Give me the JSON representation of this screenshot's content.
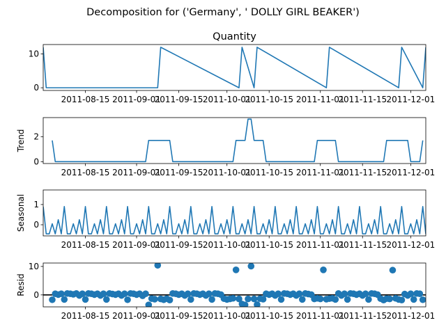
{
  "chart_data": {
    "type": "line",
    "suptitle": "Decomposition for ('Germany', ' DOLLY GIRL BEAKER')",
    "x_range": [
      "2011-08-01",
      "2011-12-06"
    ],
    "x_ticks": [
      "2011-08-15",
      "2011-09-01",
      "2011-09-15",
      "2011-10-01",
      "2011-10-15",
      "2011-11-01",
      "2011-11-15",
      "2011-12-01"
    ],
    "colors": {
      "line": "#1f77b4",
      "points": "#1f77b4",
      "zero_line": "#000000"
    },
    "panels": [
      {
        "key": "observed",
        "title": "Quantity",
        "ylabel": "",
        "style": "line",
        "ylim": [
          -0.8,
          12.8
        ],
        "yticks": [
          0,
          10
        ],
        "series": {
          "x": [
            "2011-08-01",
            "2011-08-02",
            "2011-09-08",
            "2011-09-09",
            "2011-10-05",
            "2011-10-06",
            "2011-10-10",
            "2011-10-11",
            "2011-11-03",
            "2011-11-04",
            "2011-11-27",
            "2011-11-28",
            "2011-12-05",
            "2011-12-06"
          ],
          "y": [
            12,
            0,
            0,
            12,
            0,
            12,
            0,
            12,
            0,
            12,
            0,
            12,
            0,
            12
          ]
        }
      },
      {
        "key": "trend",
        "title": "",
        "ylabel": "Trend",
        "style": "line",
        "ylim": [
          -0.15,
          3.55
        ],
        "yticks": [
          0,
          2
        ],
        "series": {
          "x": [
            "2011-08-04",
            "2011-08-05",
            "2011-09-04",
            "2011-09-05",
            "2011-09-12",
            "2011-09-13",
            "2011-10-03",
            "2011-10-04",
            "2011-10-07",
            "2011-10-08",
            "2011-10-09",
            "2011-10-10",
            "2011-10-13",
            "2011-10-14",
            "2011-10-30",
            "2011-10-31",
            "2011-11-06",
            "2011-11-07",
            "2011-11-22",
            "2011-11-23",
            "2011-11-30",
            "2011-12-01",
            "2011-12-04",
            "2011-12-05"
          ],
          "y": [
            1.71,
            0,
            0,
            1.71,
            1.71,
            0,
            0,
            1.71,
            1.71,
            3.43,
            3.43,
            1.71,
            1.71,
            0,
            0,
            1.71,
            1.71,
            0,
            0,
            1.71,
            1.71,
            0,
            0,
            1.71
          ]
        }
      },
      {
        "key": "seasonal",
        "title": "",
        "ylabel": "Seasonal",
        "style": "line",
        "ylim": [
          -0.55,
          1.72
        ],
        "yticks": [
          0,
          1
        ],
        "period_days": 7,
        "start": "2011-08-01",
        "pattern": [
          0.9,
          -0.45,
          -0.45,
          0.05,
          -0.45,
          0.25,
          -0.45
        ]
      },
      {
        "key": "resid",
        "title": "",
        "ylabel": "Resid",
        "style": "scatter",
        "ylim": [
          -4.2,
          11.2
        ],
        "yticks": [
          0,
          10
        ],
        "baseline": 0,
        "series": {
          "x": [
            "2011-08-04",
            "2011-08-05",
            "2011-08-06",
            "2011-08-07",
            "2011-08-08",
            "2011-08-09",
            "2011-08-10",
            "2011-08-11",
            "2011-08-12",
            "2011-08-13",
            "2011-08-14",
            "2011-08-15",
            "2011-08-16",
            "2011-08-17",
            "2011-08-18",
            "2011-08-19",
            "2011-08-20",
            "2011-08-21",
            "2011-08-22",
            "2011-08-23",
            "2011-08-24",
            "2011-08-25",
            "2011-08-26",
            "2011-08-27",
            "2011-08-28",
            "2011-08-29",
            "2011-08-30",
            "2011-08-31",
            "2011-09-01",
            "2011-09-02",
            "2011-09-03",
            "2011-09-04",
            "2011-09-05",
            "2011-09-06",
            "2011-09-07",
            "2011-09-08",
            "2011-09-09",
            "2011-09-10",
            "2011-09-11",
            "2011-09-12",
            "2011-09-13",
            "2011-09-14",
            "2011-09-15",
            "2011-09-16",
            "2011-09-17",
            "2011-09-18",
            "2011-09-19",
            "2011-09-20",
            "2011-09-21",
            "2011-09-22",
            "2011-09-23",
            "2011-09-24",
            "2011-09-25",
            "2011-09-26",
            "2011-09-27",
            "2011-09-28",
            "2011-09-29",
            "2011-09-30",
            "2011-10-01",
            "2011-10-02",
            "2011-10-03",
            "2011-10-04",
            "2011-10-05",
            "2011-10-06",
            "2011-10-07",
            "2011-10-08",
            "2011-10-09",
            "2011-10-10",
            "2011-10-11",
            "2011-10-12",
            "2011-10-13",
            "2011-10-14",
            "2011-10-15",
            "2011-10-16",
            "2011-10-17",
            "2011-10-18",
            "2011-10-19",
            "2011-10-20",
            "2011-10-21",
            "2011-10-22",
            "2011-10-23",
            "2011-10-24",
            "2011-10-25",
            "2011-10-26",
            "2011-10-27",
            "2011-10-28",
            "2011-10-29",
            "2011-10-30",
            "2011-10-31",
            "2011-11-01",
            "2011-11-02",
            "2011-11-03",
            "2011-11-04",
            "2011-11-05",
            "2011-11-06",
            "2011-11-07",
            "2011-11-08",
            "2011-11-09",
            "2011-11-10",
            "2011-11-11",
            "2011-11-12",
            "2011-11-13",
            "2011-11-14",
            "2011-11-15",
            "2011-11-16",
            "2011-11-17",
            "2011-11-18",
            "2011-11-19",
            "2011-11-20",
            "2011-11-21",
            "2011-11-22",
            "2011-11-23",
            "2011-11-24",
            "2011-11-25",
            "2011-11-26",
            "2011-11-27",
            "2011-11-28",
            "2011-11-29",
            "2011-11-30",
            "2011-12-01",
            "2011-12-02",
            "2011-12-03",
            "2011-12-04",
            "2011-12-05"
          ],
          "y": [
            -1.7,
            0.4,
            0.1,
            0.4,
            -1.6,
            0.5,
            0.4,
            0.2,
            0.5,
            -0.2,
            0.4,
            -1.6,
            0.5,
            0.4,
            0.1,
            0.4,
            -0.2,
            0.4,
            -1.6,
            0.5,
            0.3,
            0.1,
            0.4,
            -0.2,
            0.4,
            -1.7,
            0.5,
            0.4,
            0.1,
            0.4,
            -0.3,
            0.4,
            -3.5,
            -1.3,
            -1.5,
            10.4,
            -1.4,
            -1.7,
            -1.3,
            -1.8,
            0.5,
            0.4,
            0.1,
            0.4,
            -0.2,
            0.4,
            -1.6,
            0.5,
            0.4,
            0.1,
            0.4,
            -0.2,
            0.4,
            -1.6,
            0.5,
            0.4,
            0.1,
            -1.3,
            -1.6,
            -1.4,
            -1.2,
            8.8,
            -1.4,
            -3.2,
            -3.5,
            -1.4,
            10.1,
            -1.4,
            -3.4,
            -1.3,
            -1.5,
            0.4,
            0.1,
            0.4,
            -0.2,
            0.4,
            -1.6,
            0.5,
            0.4,
            0.1,
            0.4,
            -0.2,
            0.4,
            -1.6,
            0.5,
            0.3,
            0.1,
            -1.4,
            -1.2,
            -1.4,
            8.8,
            -1.5,
            -1.3,
            -1.2,
            -1.6,
            0.5,
            -0.2,
            0.4,
            -1.6,
            0.5,
            0.4,
            0.1,
            0.4,
            -0.2,
            0.4,
            -1.6,
            0.5,
            0.4,
            0.1,
            -1.3,
            -1.8,
            -1.3,
            -1.4,
            8.7,
            -1.2,
            -1.6,
            -1.8,
            0.3,
            -0.2,
            0.4,
            -1.6,
            0.5,
            0.4,
            -1.7
          ]
        }
      }
    ]
  }
}
